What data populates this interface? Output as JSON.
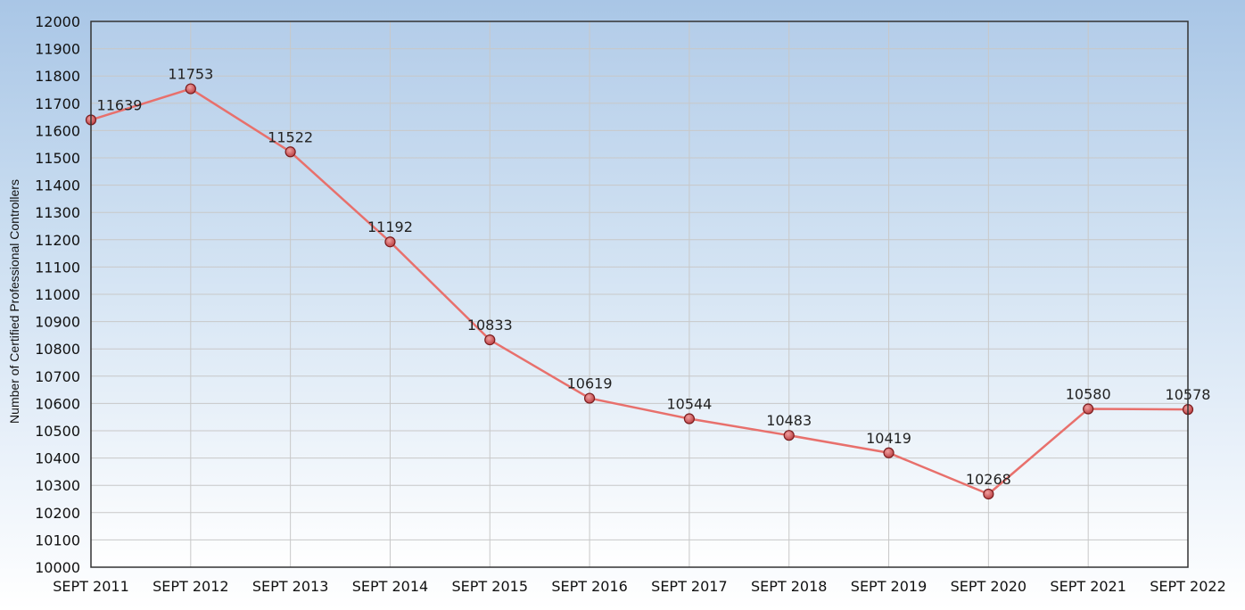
{
  "chart_data": {
    "type": "line",
    "title": "",
    "xlabel": "",
    "ylabel": "Number of Certified Professional Controllers",
    "categories": [
      "SEPT 2011",
      "SEPT 2012",
      "SEPT 2013",
      "SEPT 2014",
      "SEPT 2015",
      "SEPT 2016",
      "SEPT 2017",
      "SEPT 2018",
      "SEPT 2019",
      "SEPT 2020",
      "SEPT 2021",
      "SEPT 2022"
    ],
    "series": [
      {
        "values": [
          11639,
          11753,
          11522,
          11192,
          10833,
          10619,
          10544,
          10483,
          10419,
          10268,
          10580,
          10578
        ]
      }
    ],
    "data_labels": [
      "11639",
      "11753",
      "11522",
      "11192",
      "10833",
      "10619",
      "10544",
      "10483",
      "10419",
      "10268",
      "10580",
      "10578"
    ],
    "ylim": [
      10000,
      12000
    ],
    "yticks": [
      "10000",
      "10100",
      "10200",
      "10300",
      "10400",
      "10500",
      "10600",
      "10700",
      "10800",
      "10900",
      "11000",
      "11100",
      "11200",
      "11300",
      "11400",
      "11500",
      "11600",
      "11700",
      "11800",
      "11900",
      "12000"
    ],
    "grid": true,
    "legend": "none",
    "colors": {
      "line": "#e8706c",
      "marker_fill": "#c9474a",
      "marker_stroke": "#7a1d1f",
      "grid": "#c8c8c8",
      "plot_border": "#333333"
    }
  }
}
